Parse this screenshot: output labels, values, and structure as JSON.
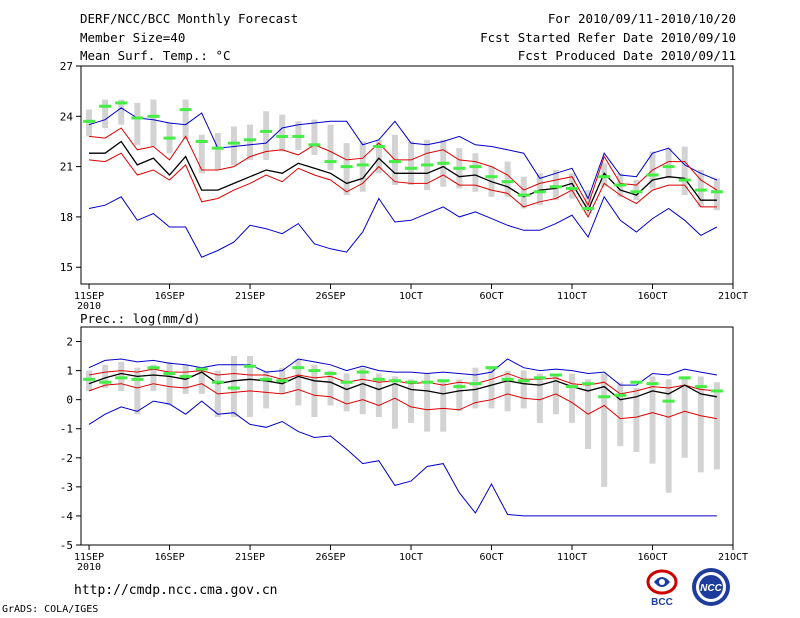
{
  "header": {
    "title": "DERF/NCC/BCC Monthly Forecast",
    "member_size": "Member Size=40",
    "variable": "Mean Surf. Temp.: °C",
    "period": "For 2010/09/11-2010/10/20",
    "started": "Fcst Started Refer Date 2010/09/10",
    "produced": "Fcst Produced Date 2010/09/11"
  },
  "footer": {
    "url": "http://cmdp.ncc.cma.gov.cn",
    "credit": "GrADS: COLA/IGES",
    "logo1": "BCC",
    "logo2": "NCC"
  },
  "colors": {
    "max_min_line": "#0000cc",
    "spread_line": "#dd0000",
    "ensemble_mean": "#000000",
    "box": "#d3d3d3",
    "climatology": "#44ee44"
  },
  "chart_data": [
    {
      "type": "line",
      "name": "temperature",
      "title": "Mean Surf. Temp.: °C",
      "x": [
        1,
        2,
        3,
        4,
        5,
        6,
        7,
        8,
        9,
        10,
        11,
        12,
        13,
        14,
        15,
        16,
        17,
        18,
        19,
        20,
        21,
        22,
        23,
        24,
        25,
        26,
        27,
        28,
        29,
        30,
        31,
        32,
        33,
        34,
        35,
        36,
        37,
        38,
        39,
        40
      ],
      "xticks": [
        1,
        6,
        11,
        16,
        21,
        26,
        31,
        36,
        41
      ],
      "xticklabels": [
        "11SEP\n2010",
        "16SEP",
        "21SEP",
        "26SEP",
        "1OCT",
        "6OCT",
        "11OCT",
        "16OCT",
        "21OCT"
      ],
      "xlim": [
        0.5,
        41
      ],
      "ylim": [
        14,
        27
      ],
      "yticks": [
        15,
        18,
        21,
        24,
        27
      ],
      "series": [
        {
          "name": "max",
          "values": [
            23.5,
            23.8,
            24.5,
            23.9,
            23.8,
            23.6,
            23.5,
            24.2,
            22.1,
            22.2,
            22.3,
            22.4,
            23.3,
            23.5,
            23.6,
            23.7,
            23.7,
            22.3,
            22.6,
            23.7,
            22.4,
            22.3,
            22.5,
            22.8,
            22.3,
            22.2,
            22.0,
            21.8,
            20.3,
            20.6,
            20.9,
            19.1,
            21.8,
            20.5,
            20.4,
            21.8,
            22.1,
            21.1,
            20.6,
            20.2
          ]
        },
        {
          "name": "upper",
          "values": [
            22.8,
            22.7,
            23.3,
            22.0,
            22.2,
            21.4,
            22.8,
            20.8,
            20.8,
            21.0,
            21.6,
            21.9,
            22.0,
            21.7,
            22.3,
            21.9,
            21.4,
            21.5,
            22.4,
            21.4,
            21.4,
            21.8,
            22.0,
            21.4,
            21.3,
            21.0,
            20.5,
            19.6,
            20.0,
            20.2,
            20.4,
            18.7,
            21.6,
            20.0,
            19.9,
            20.8,
            21.3,
            21.3,
            20.2,
            19.6
          ]
        },
        {
          "name": "mean",
          "values": [
            21.8,
            21.8,
            22.5,
            21.1,
            21.5,
            20.5,
            21.6,
            19.6,
            19.6,
            20.0,
            20.4,
            20.8,
            20.6,
            21.2,
            20.9,
            20.6,
            20.0,
            20.3,
            21.5,
            20.6,
            20.6,
            20.6,
            21.0,
            20.4,
            20.5,
            20.1,
            19.8,
            19.2,
            19.6,
            19.7,
            20.0,
            18.4,
            20.6,
            19.6,
            19.3,
            20.2,
            20.4,
            20.3,
            19.0,
            19.0
          ]
        },
        {
          "name": "lower",
          "values": [
            21.4,
            21.3,
            21.8,
            20.5,
            20.8,
            20.2,
            21.1,
            18.9,
            19.1,
            19.6,
            20.0,
            20.5,
            20.1,
            20.9,
            20.5,
            20.2,
            19.5,
            20.0,
            21.0,
            20.1,
            20.0,
            20.0,
            20.5,
            19.9,
            19.9,
            19.6,
            19.4,
            18.6,
            18.9,
            19.1,
            19.6,
            18.0,
            20.0,
            19.3,
            18.8,
            19.6,
            19.9,
            19.9,
            18.6,
            18.6
          ]
        },
        {
          "name": "min",
          "values": [
            18.5,
            18.7,
            19.2,
            17.8,
            18.2,
            17.4,
            17.4,
            15.6,
            16.0,
            16.5,
            17.5,
            17.3,
            17.0,
            17.6,
            16.4,
            16.1,
            15.9,
            17.1,
            19.1,
            17.7,
            17.8,
            18.2,
            18.6,
            18.0,
            18.3,
            17.9,
            17.5,
            17.2,
            17.2,
            17.6,
            18.1,
            16.8,
            19.2,
            17.8,
            17.1,
            17.9,
            18.5,
            17.8,
            16.9,
            17.4
          ]
        }
      ],
      "boxes": {
        "low": [
          22.8,
          23.3,
          23.5,
          22.3,
          22.2,
          21.8,
          22.6,
          20.6,
          20.8,
          21.1,
          21.4,
          21.4,
          21.9,
          22.0,
          21.7,
          20.8,
          19.3,
          19.5,
          20.6,
          19.9,
          19.9,
          19.6,
          19.8,
          19.7,
          19.5,
          19.2,
          19.2,
          18.5,
          18.7,
          19.0,
          19.1,
          18.2,
          19.8,
          19.2,
          19.0,
          19.7,
          20.3,
          19.3,
          18.6,
          18.4
        ],
        "high": [
          24.4,
          25.0,
          25.0,
          24.8,
          25.0,
          23.6,
          25.0,
          22.9,
          23.0,
          23.4,
          23.5,
          24.3,
          24.1,
          23.7,
          23.8,
          23.5,
          22.4,
          22.5,
          22.6,
          22.9,
          22.5,
          22.6,
          22.6,
          22.1,
          21.8,
          21.0,
          21.3,
          20.4,
          20.6,
          20.8,
          20.6,
          19.6,
          21.2,
          20.6,
          20.2,
          21.9,
          22.1,
          22.2,
          20.8,
          20.3
        ]
      },
      "climatology": [
        23.7,
        24.6,
        24.8,
        23.9,
        24.0,
        22.7,
        24.4,
        22.5,
        22.1,
        22.4,
        22.6,
        23.1,
        22.8,
        22.8,
        22.3,
        21.3,
        21.0,
        21.1,
        22.2,
        21.3,
        20.9,
        21.1,
        21.2,
        20.9,
        21.0,
        20.4,
        20.1,
        19.3,
        19.5,
        19.8,
        19.7,
        18.5,
        20.4,
        19.9,
        19.5,
        20.5,
        21.0,
        20.2,
        19.6,
        19.5
      ]
    },
    {
      "type": "line",
      "name": "precipitation",
      "title": "Prec.: log(mm/d)",
      "x": [
        1,
        2,
        3,
        4,
        5,
        6,
        7,
        8,
        9,
        10,
        11,
        12,
        13,
        14,
        15,
        16,
        17,
        18,
        19,
        20,
        21,
        22,
        23,
        24,
        25,
        26,
        27,
        28,
        29,
        30,
        31,
        32,
        33,
        34,
        35,
        36,
        37,
        38,
        39,
        40
      ],
      "xticks": [
        1,
        6,
        11,
        16,
        21,
        26,
        31,
        36,
        41
      ],
      "xticklabels": [
        "11SEP\n2010",
        "16SEP",
        "21SEP",
        "26SEP",
        "1OCT",
        "6OCT",
        "11OCT",
        "16OCT",
        "21OCT"
      ],
      "xlim": [
        0.5,
        41
      ],
      "ylim": [
        -5,
        2.5
      ],
      "yticks": [
        -5,
        -4,
        -3,
        -2,
        -1,
        0,
        1,
        2
      ],
      "series": [
        {
          "name": "max",
          "values": [
            1.1,
            1.35,
            1.4,
            1.3,
            1.35,
            1.25,
            1.2,
            1.1,
            1.2,
            1.2,
            1.2,
            0.95,
            1.0,
            1.4,
            1.3,
            1.2,
            1.0,
            1.15,
            1.0,
            0.95,
            0.95,
            0.9,
            0.95,
            0.9,
            0.85,
            0.95,
            1.4,
            1.1,
            1.0,
            1.05,
            1.0,
            0.9,
            0.95,
            0.5,
            0.5,
            0.9,
            0.85,
            1.05,
            0.95,
            0.85
          ]
        },
        {
          "name": "upper",
          "values": [
            0.85,
            0.95,
            1.0,
            0.95,
            1.05,
            0.95,
            0.95,
            1.0,
            0.85,
            0.9,
            0.85,
            0.85,
            0.7,
            0.85,
            0.75,
            0.8,
            0.6,
            0.7,
            0.6,
            0.65,
            0.55,
            0.6,
            0.5,
            0.6,
            0.55,
            0.7,
            0.9,
            0.7,
            0.7,
            0.75,
            0.55,
            0.5,
            0.6,
            0.2,
            0.3,
            0.45,
            0.4,
            0.5,
            0.35,
            0.3
          ]
        },
        {
          "name": "mean",
          "values": [
            0.55,
            0.75,
            0.9,
            0.8,
            0.85,
            0.8,
            0.7,
            0.95,
            0.55,
            0.65,
            0.7,
            0.65,
            0.55,
            0.8,
            0.65,
            0.6,
            0.35,
            0.55,
            0.35,
            0.55,
            0.35,
            0.3,
            0.2,
            0.3,
            0.35,
            0.5,
            0.65,
            0.55,
            0.5,
            0.65,
            0.45,
            0.3,
            0.45,
            0.0,
            0.1,
            0.3,
            0.2,
            0.5,
            0.2,
            0.1
          ]
        },
        {
          "name": "lower",
          "values": [
            0.3,
            0.5,
            0.55,
            0.4,
            0.55,
            0.45,
            0.4,
            0.55,
            0.2,
            0.25,
            0.3,
            0.25,
            0.2,
            0.35,
            0.15,
            0.1,
            -0.15,
            0.0,
            -0.2,
            0.05,
            -0.25,
            -0.35,
            -0.3,
            -0.35,
            -0.1,
            0.0,
            0.2,
            0.05,
            0.0,
            0.2,
            -0.1,
            -0.5,
            -0.2,
            -0.65,
            -0.6,
            -0.45,
            -0.6,
            -0.4,
            -0.55,
            -0.65
          ]
        },
        {
          "name": "min",
          "values": [
            -0.85,
            -0.5,
            -0.25,
            -0.4,
            -0.05,
            -0.15,
            -0.5,
            -0.05,
            -0.5,
            -0.45,
            -0.85,
            -0.95,
            -0.75,
            -1.1,
            -1.3,
            -1.25,
            -1.7,
            -2.2,
            -2.1,
            -2.95,
            -2.8,
            -2.3,
            -2.2,
            -3.2,
            -3.9,
            -2.9,
            -3.95,
            -4.0,
            -4.0,
            -4.0,
            -4.0,
            -4.0,
            -4.0,
            -4.0,
            -4.0,
            -4.0,
            -4.0,
            -4.0,
            -4.0,
            -4.0
          ]
        }
      ],
      "boxes": {
        "low": [
          0.3,
          0.4,
          0.3,
          -0.5,
          0.3,
          -0.2,
          0.2,
          0.2,
          -0.6,
          -0.6,
          -0.6,
          -0.3,
          0.2,
          -0.2,
          -0.6,
          -0.2,
          -0.4,
          -0.5,
          -0.6,
          -1.0,
          -0.8,
          -1.1,
          -1.1,
          -0.4,
          -0.3,
          -0.3,
          -0.4,
          -0.3,
          -0.8,
          -0.5,
          -0.8,
          -1.7,
          -3.0,
          -1.6,
          -1.8,
          -2.2,
          -3.2,
          -2.0,
          -2.5,
          -2.4
        ],
        "high": [
          1.0,
          1.2,
          1.3,
          1.1,
          1.2,
          1.3,
          1.2,
          1.0,
          1.0,
          1.5,
          1.5,
          1.0,
          1.1,
          1.4,
          1.2,
          1.0,
          0.9,
          1.1,
          0.9,
          0.8,
          0.7,
          0.9,
          0.7,
          0.7,
          1.1,
          1.1,
          1.0,
          1.0,
          0.9,
          0.9,
          0.9,
          0.7,
          0.9,
          0.6,
          0.4,
          0.8,
          0.7,
          0.8,
          0.8,
          0.6
        ]
      },
      "climatology": [
        0.7,
        0.6,
        0.75,
        0.7,
        1.1,
        0.9,
        0.8,
        1.05,
        0.6,
        0.4,
        1.15,
        0.7,
        0.65,
        1.1,
        1.0,
        0.9,
        0.6,
        0.95,
        0.7,
        0.65,
        0.6,
        0.6,
        0.65,
        0.45,
        0.55,
        1.1,
        0.7,
        0.65,
        0.75,
        0.85,
        0.45,
        0.55,
        0.1,
        0.15,
        0.6,
        0.55,
        -0.05,
        0.75,
        0.45,
        0.3
      ]
    }
  ]
}
